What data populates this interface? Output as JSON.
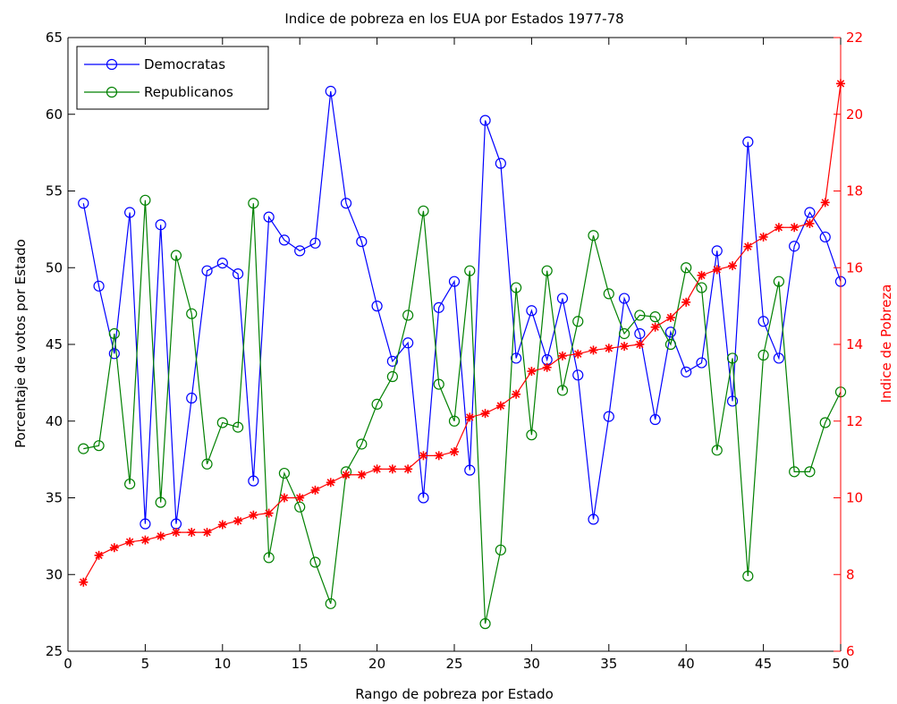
{
  "colors": {
    "democratas": "#0000ff",
    "republicanos": "#008000",
    "pobreza": "#ff0000",
    "axis": "#000000",
    "background": "#ffffff"
  },
  "chart_data": {
    "type": "line",
    "title": "Indice de pobreza en los EUA por Estados 1977-78",
    "xlabel": "Rango de pobreza por Estado",
    "ylabel_left": "Porcentaje de votos por Estado",
    "ylabel_right": "Indice de Pobreza",
    "xlim": [
      0,
      50
    ],
    "ylim_left": [
      25,
      65
    ],
    "ylim_right": [
      6,
      22
    ],
    "x_ticks": [
      "0",
      "5",
      "10",
      "15",
      "20",
      "25",
      "30",
      "35",
      "40",
      "45",
      "50"
    ],
    "y_left_ticks": [
      "25",
      "30",
      "35",
      "40",
      "45",
      "50",
      "55",
      "60",
      "65"
    ],
    "y_right_ticks": [
      "6",
      "8",
      "10",
      "12",
      "14",
      "16",
      "18",
      "20",
      "22"
    ],
    "grid": false,
    "legend_position": "top-left",
    "x": [
      1,
      2,
      3,
      4,
      5,
      6,
      7,
      8,
      9,
      10,
      11,
      12,
      13,
      14,
      15,
      16,
      17,
      18,
      19,
      20,
      21,
      22,
      23,
      24,
      25,
      26,
      27,
      28,
      29,
      30,
      31,
      32,
      33,
      34,
      35,
      36,
      37,
      38,
      39,
      40,
      41,
      42,
      43,
      44,
      45,
      46,
      47,
      48,
      49,
      50
    ],
    "series": [
      {
        "name": "Democratas",
        "axis": "left",
        "marker": "circle",
        "values": [
          54.2,
          48.8,
          44.4,
          53.6,
          33.3,
          52.8,
          33.3,
          41.5,
          49.8,
          50.3,
          49.6,
          36.1,
          53.3,
          51.8,
          51.1,
          51.6,
          61.5,
          54.2,
          51.7,
          47.5,
          43.9,
          45.1,
          35.0,
          47.4,
          49.1,
          36.8,
          59.6,
          56.8,
          44.1,
          47.2,
          44.0,
          48.0,
          43.0,
          33.6,
          40.3,
          48.0,
          45.7,
          40.1,
          45.8,
          43.2,
          43.8,
          51.1,
          41.3,
          58.2,
          46.5,
          44.1,
          51.4,
          53.6,
          52.0,
          49.1
        ]
      },
      {
        "name": "Republicanos",
        "axis": "left",
        "marker": "circle",
        "values": [
          38.2,
          38.4,
          45.7,
          35.9,
          54.4,
          34.7,
          50.8,
          47.0,
          37.2,
          39.9,
          39.6,
          54.2,
          31.1,
          36.6,
          34.4,
          30.8,
          28.1,
          36.7,
          38.5,
          41.1,
          42.9,
          46.9,
          53.7,
          42.4,
          40.0,
          49.8,
          26.8,
          31.6,
          48.7,
          39.1,
          49.8,
          42.0,
          46.5,
          52.1,
          48.3,
          45.7,
          46.9,
          46.8,
          45.0,
          50.0,
          48.7,
          38.1,
          44.1,
          29.9,
          44.3,
          49.1,
          36.7,
          36.7,
          39.9,
          41.9
        ]
      },
      {
        "name": "Indice de Pobreza",
        "axis": "right",
        "marker": "star",
        "values": [
          7.8,
          8.5,
          8.7,
          8.85,
          8.9,
          9.0,
          9.1,
          9.1,
          9.1,
          9.3,
          9.4,
          9.55,
          9.6,
          10.0,
          10.0,
          10.2,
          10.4,
          10.6,
          10.6,
          10.75,
          10.75,
          10.75,
          11.1,
          11.1,
          11.2,
          12.1,
          12.2,
          12.4,
          12.7,
          13.3,
          13.4,
          13.7,
          13.75,
          13.85,
          13.9,
          13.95,
          14.0,
          14.45,
          14.7,
          15.1,
          15.8,
          15.95,
          16.05,
          16.55,
          16.8,
          17.05,
          17.05,
          17.15,
          17.7,
          20.8
        ]
      }
    ]
  }
}
